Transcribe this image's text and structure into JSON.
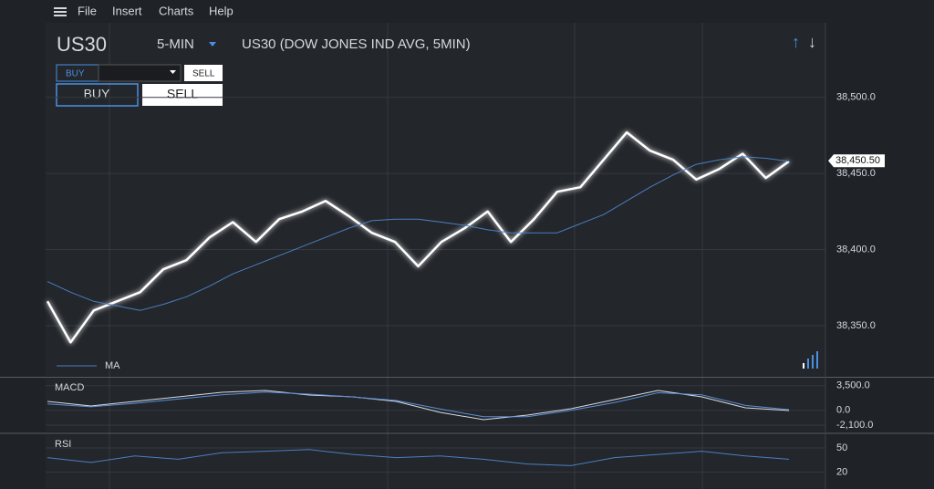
{
  "menu": [
    "File",
    "Insert",
    "Charts",
    "Help"
  ],
  "header": {
    "symbol": "US30",
    "interval": "5-MIN",
    "description": "US30 (DOW JONES IND AVG, 5MIN)"
  },
  "order": {
    "buy_small": "BUY",
    "sell_small": "SELL",
    "buy": "BUY",
    "sell": "SELL"
  },
  "chart_data": [
    {
      "type": "line",
      "series": [
        {
          "color": "#ffffff",
          "values": [
            38366,
            38339,
            38360,
            38366,
            38372,
            38387,
            38393,
            38408,
            38418,
            38405,
            38420,
            38425,
            38432,
            38422,
            38411,
            38405,
            38389,
            38405,
            38414,
            38425,
            38405,
            38420,
            38438,
            38441,
            38459,
            38477,
            38465,
            38459,
            38446,
            38453,
            38463,
            38447,
            38458
          ]
        },
        {
          "name": "MA",
          "color": "#4a7fc1",
          "values": [
            38379,
            38372,
            38366,
            38363,
            38360,
            38364,
            38369,
            38376,
            38384,
            38390,
            38396,
            38402,
            38408,
            38414,
            38419,
            38420,
            38420,
            38418,
            38416,
            38413,
            38411,
            38411,
            38411,
            38417,
            38423,
            38432,
            38441,
            38449,
            38456,
            38459,
            38461,
            38460,
            38458
          ]
        }
      ],
      "ylim": [
        38317,
        38549
      ],
      "yticks": [
        {
          "value": 38500,
          "label": "38,500.0"
        },
        {
          "value": 38450,
          "label": "38,450.0"
        },
        {
          "value": 38400,
          "label": "38,400.0"
        },
        {
          "value": 38350,
          "label": "38,350.0"
        }
      ],
      "annotations": [
        {
          "value": 38450.5,
          "label": "38,450.50"
        }
      ],
      "grid": true
    },
    {
      "type": "line",
      "title": "MACD",
      "series": [
        {
          "color": "#d8dde3",
          "values": [
            1267,
            621,
            1267,
            1914,
            2560,
            2819,
            2172,
            1914,
            1267,
            -285,
            -1319,
            -672,
            233,
            1526,
            2819,
            1914,
            362,
            -26
          ]
        },
        {
          "color": "#5b8fd6",
          "values": [
            900,
            500,
            1000,
            1600,
            2200,
            2600,
            2300,
            1900,
            1400,
            200,
            -900,
            -900,
            0,
            1100,
            2500,
            2200,
            700,
            100
          ]
        }
      ],
      "ylim": [
        -3000,
        4500
      ],
      "yticks": [
        {
          "value": 3500,
          "label": "3,500.0"
        },
        {
          "value": 0,
          "label": "0.0"
        },
        {
          "value": -2100,
          "label": "-2,100.0"
        }
      ],
      "grid": true
    },
    {
      "type": "line",
      "title": "RSI",
      "series": [
        {
          "color": "#4a7fc1",
          "values": [
            38,
            32,
            40,
            36,
            44,
            46,
            48,
            42,
            38,
            40,
            36,
            30,
            28,
            38,
            42,
            46,
            40,
            36
          ]
        }
      ],
      "ylim": [
        0,
        66
      ],
      "yticks": [
        50,
        20
      ],
      "grid": true
    }
  ]
}
